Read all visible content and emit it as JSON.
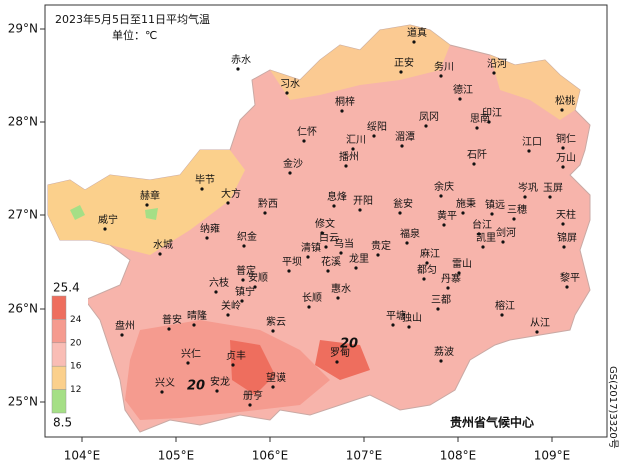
{
  "header": {
    "title": "2023年5月5日至11日平均气温",
    "unit": "单位：℃"
  },
  "axes": {
    "lon_labels": [
      "104°E",
      "105°E",
      "106°E",
      "107°E",
      "108°E",
      "109°E"
    ],
    "lat_labels": [
      "29°N",
      "28°N",
      "27°N",
      "26°N",
      "25°N"
    ]
  },
  "legend": {
    "breaks": [
      25.4,
      24,
      20,
      16,
      12,
      8.5
    ],
    "colors": [
      "#ee6e5e",
      "#f59b8f",
      "#f9bdb5",
      "#fbd08c",
      "#a5df86"
    ]
  },
  "cities": [
    "道真",
    "赤水",
    "习水",
    "正安",
    "务川",
    "沿河",
    "桐梓",
    "德江",
    "印江",
    "松桃",
    "仁怀",
    "绥阳",
    "凤冈",
    "思南",
    "汇川",
    "播州",
    "湄潭",
    "江口",
    "铜仁",
    "石阡",
    "万山",
    "金沙",
    "毕节",
    "赫章",
    "大方",
    "息烽",
    "开阳",
    "余庆",
    "岑巩",
    "玉屏",
    "黔西",
    "瓮安",
    "施秉",
    "镇远",
    "三穗",
    "天柱",
    "威宁",
    "黄平",
    "修文",
    "纳雍",
    "织金",
    "福泉",
    "凯里",
    "台江",
    "剑河",
    "锦屏",
    "水城",
    "清镇",
    "白云",
    "乌当",
    "贵定",
    "麻江",
    "雷山",
    "平坝",
    "花溪",
    "龙里",
    "都匀",
    "丹寨",
    "六枝",
    "普定",
    "安顺",
    "长顺",
    "惠水",
    "黎平",
    "镇宁",
    "关岭",
    "三都",
    "平塘",
    "独山",
    "榕江",
    "从江",
    "盘州",
    "普安",
    "晴隆",
    "紫云",
    "兴仁",
    "贞丰",
    "罗甸",
    "荔波",
    "兴义",
    "安龙",
    "望谟",
    "册亨"
  ],
  "contour_labels": [
    20,
    20
  ],
  "footer": {
    "org": "贵州省气候中心",
    "map_no": "GS(2017)3320号"
  }
}
